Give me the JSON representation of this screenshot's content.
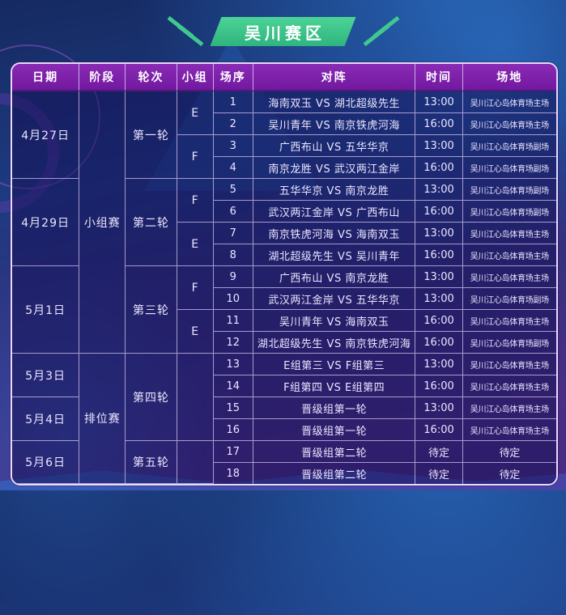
{
  "banner": {
    "title": "吴川赛区",
    "badge_color": "#3fc88f"
  },
  "table": {
    "headers": [
      "日期",
      "阶段",
      "轮次",
      "小组",
      "场序",
      "对阵",
      "时间",
      "场地"
    ],
    "rows": [
      [
        {
          "t": "4月27日",
          "rs": 4,
          "c": "date",
          "n": "date-cell"
        },
        {
          "t": "小组赛",
          "rs": 12,
          "c": "stage",
          "n": "stage-cell"
        },
        {
          "t": "第一轮",
          "rs": 4,
          "c": "round",
          "n": "round-cell"
        },
        {
          "t": "E",
          "rs": 2,
          "c": "group",
          "n": "group-cell"
        },
        {
          "t": "1",
          "c": "no",
          "n": "match-number"
        },
        {
          "t": "海南双玉 VS 湖北超级先生",
          "c": "match",
          "n": "matchup"
        },
        {
          "t": "13:00",
          "c": "time",
          "n": "match-time"
        },
        {
          "t": "吴川江心岛体育场主场",
          "c": "venue",
          "n": "venue"
        }
      ],
      [
        {
          "t": "2",
          "c": "no",
          "n": "match-number"
        },
        {
          "t": "吴川青年 VS 南京铁虎河海",
          "c": "match",
          "n": "matchup"
        },
        {
          "t": "16:00",
          "c": "time",
          "n": "match-time"
        },
        {
          "t": "吴川江心岛体育场主场",
          "c": "venue",
          "n": "venue"
        }
      ],
      [
        {
          "t": "F",
          "rs": 2,
          "c": "group",
          "n": "group-cell"
        },
        {
          "t": "3",
          "c": "no",
          "n": "match-number"
        },
        {
          "t": "广西布山 VS 五华华京",
          "c": "match",
          "n": "matchup"
        },
        {
          "t": "13:00",
          "c": "time",
          "n": "match-time"
        },
        {
          "t": "吴川江心岛体育场副场",
          "c": "venue",
          "n": "venue"
        }
      ],
      [
        {
          "t": "4",
          "c": "no",
          "n": "match-number"
        },
        {
          "t": "南京龙胜 VS 武汉两江金岸",
          "c": "match",
          "n": "matchup"
        },
        {
          "t": "16:00",
          "c": "time",
          "n": "match-time"
        },
        {
          "t": "吴川江心岛体育场副场",
          "c": "venue",
          "n": "venue"
        }
      ],
      [
        {
          "t": "4月29日",
          "rs": 4,
          "c": "date",
          "n": "date-cell"
        },
        {
          "t": "第二轮",
          "rs": 4,
          "c": "round",
          "n": "round-cell"
        },
        {
          "t": "F",
          "rs": 2,
          "c": "group",
          "n": "group-cell"
        },
        {
          "t": "5",
          "c": "no",
          "n": "match-number"
        },
        {
          "t": "五华华京 VS 南京龙胜",
          "c": "match",
          "n": "matchup"
        },
        {
          "t": "13:00",
          "c": "time",
          "n": "match-time"
        },
        {
          "t": "吴川江心岛体育场副场",
          "c": "venue",
          "n": "venue"
        }
      ],
      [
        {
          "t": "6",
          "c": "no",
          "n": "match-number"
        },
        {
          "t": "武汉两江金岸 VS 广西布山",
          "c": "match",
          "n": "matchup"
        },
        {
          "t": "16:00",
          "c": "time",
          "n": "match-time"
        },
        {
          "t": "吴川江心岛体育场副场",
          "c": "venue",
          "n": "venue"
        }
      ],
      [
        {
          "t": "E",
          "rs": 2,
          "c": "group",
          "n": "group-cell"
        },
        {
          "t": "7",
          "c": "no",
          "n": "match-number"
        },
        {
          "t": "南京铁虎河海 VS 海南双玉",
          "c": "match",
          "n": "matchup"
        },
        {
          "t": "13:00",
          "c": "time",
          "n": "match-time"
        },
        {
          "t": "吴川江心岛体育场主场",
          "c": "venue",
          "n": "venue"
        }
      ],
      [
        {
          "t": "8",
          "c": "no",
          "n": "match-number"
        },
        {
          "t": "湖北超级先生 VS 吴川青年",
          "c": "match",
          "n": "matchup"
        },
        {
          "t": "16:00",
          "c": "time",
          "n": "match-time"
        },
        {
          "t": "吴川江心岛体育场主场",
          "c": "venue",
          "n": "venue"
        }
      ],
      [
        {
          "t": "5月1日",
          "rs": 4,
          "c": "date",
          "n": "date-cell"
        },
        {
          "t": "第三轮",
          "rs": 4,
          "c": "round",
          "n": "round-cell"
        },
        {
          "t": "F",
          "rs": 2,
          "c": "group",
          "n": "group-cell"
        },
        {
          "t": "9",
          "c": "no",
          "n": "match-number"
        },
        {
          "t": "广西布山 VS 南京龙胜",
          "c": "match",
          "n": "matchup"
        },
        {
          "t": "13:00",
          "c": "time",
          "n": "match-time"
        },
        {
          "t": "吴川江心岛体育场主场",
          "c": "venue",
          "n": "venue"
        }
      ],
      [
        {
          "t": "10",
          "c": "no",
          "n": "match-number"
        },
        {
          "t": "武汉两江金岸 VS 五华华京",
          "c": "match",
          "n": "matchup"
        },
        {
          "t": "13:00",
          "c": "time",
          "n": "match-time"
        },
        {
          "t": "吴川江心岛体育场副场",
          "c": "venue",
          "n": "venue"
        }
      ],
      [
        {
          "t": "E",
          "rs": 2,
          "c": "group",
          "n": "group-cell"
        },
        {
          "t": "11",
          "c": "no",
          "n": "match-number"
        },
        {
          "t": "吴川青年 VS 海南双玉",
          "c": "match",
          "n": "matchup"
        },
        {
          "t": "16:00",
          "c": "time",
          "n": "match-time"
        },
        {
          "t": "吴川江心岛体育场主场",
          "c": "venue",
          "n": "venue"
        }
      ],
      [
        {
          "t": "12",
          "c": "no",
          "n": "match-number"
        },
        {
          "t": "湖北超级先生 VS 南京铁虎河海",
          "c": "match",
          "n": "matchup"
        },
        {
          "t": "16:00",
          "c": "time",
          "n": "match-time"
        },
        {
          "t": "吴川江心岛体育场副场",
          "c": "venue",
          "n": "venue"
        }
      ],
      [
        {
          "t": "5月3日",
          "rs": 2,
          "c": "date",
          "n": "date-cell"
        },
        {
          "t": "排位赛",
          "rs": 6,
          "c": "stage",
          "n": "stage-cell"
        },
        {
          "t": "第四轮",
          "rs": 4,
          "c": "round",
          "n": "round-cell"
        },
        {
          "t": "",
          "rs": 4,
          "c": "group",
          "n": "group-cell"
        },
        {
          "t": "13",
          "c": "no",
          "n": "match-number"
        },
        {
          "t": "E组第三 VS F组第三",
          "c": "match",
          "n": "matchup"
        },
        {
          "t": "13:00",
          "c": "time",
          "n": "match-time"
        },
        {
          "t": "吴川江心岛体育场主场",
          "c": "venue",
          "n": "venue"
        }
      ],
      [
        {
          "t": "14",
          "c": "no",
          "n": "match-number"
        },
        {
          "t": "F组第四 VS E组第四",
          "c": "match",
          "n": "matchup"
        },
        {
          "t": "16:00",
          "c": "time",
          "n": "match-time"
        },
        {
          "t": "吴川江心岛体育场主场",
          "c": "venue",
          "n": "venue"
        }
      ],
      [
        {
          "t": "5月4日",
          "rs": 2,
          "c": "date",
          "n": "date-cell"
        },
        {
          "t": "15",
          "c": "no",
          "n": "match-number"
        },
        {
          "t": "晋级组第一轮",
          "c": "match",
          "n": "matchup"
        },
        {
          "t": "13:00",
          "c": "time",
          "n": "match-time"
        },
        {
          "t": "吴川江心岛体育场主场",
          "c": "venue",
          "n": "venue"
        }
      ],
      [
        {
          "t": "16",
          "c": "no",
          "n": "match-number"
        },
        {
          "t": "晋级组第一轮",
          "c": "match",
          "n": "matchup"
        },
        {
          "t": "16:00",
          "c": "time",
          "n": "match-time"
        },
        {
          "t": "吴川江心岛体育场主场",
          "c": "venue",
          "n": "venue"
        }
      ],
      [
        {
          "t": "5月6日",
          "rs": 2,
          "c": "date",
          "n": "date-cell"
        },
        {
          "t": "第五轮",
          "rs": 2,
          "c": "round",
          "n": "round-cell"
        },
        {
          "t": "",
          "rs": 2,
          "c": "group",
          "n": "group-cell"
        },
        {
          "t": "17",
          "c": "no",
          "n": "match-number"
        },
        {
          "t": "晋级组第二轮",
          "c": "match",
          "n": "matchup"
        },
        {
          "t": "待定",
          "c": "time",
          "n": "match-time"
        },
        {
          "t": "待定",
          "c": "venue time",
          "n": "venue"
        }
      ],
      [
        {
          "t": "18",
          "c": "no",
          "n": "match-number"
        },
        {
          "t": "晋级组第二轮",
          "c": "match",
          "n": "matchup"
        },
        {
          "t": "待定",
          "c": "time",
          "n": "match-time"
        },
        {
          "t": "待定",
          "c": "venue time",
          "n": "venue"
        }
      ]
    ]
  }
}
